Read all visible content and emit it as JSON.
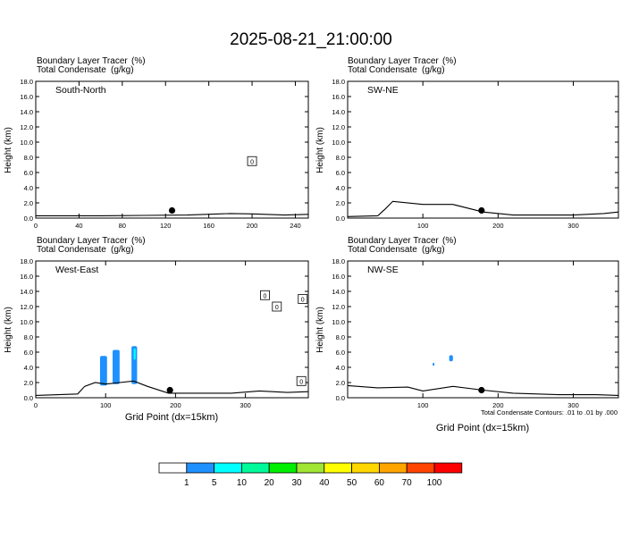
{
  "title": "2025-08-21_21:00:00",
  "panel_header": {
    "line1_label": "Boundary Layer Tracer",
    "line1_unit": "(%)",
    "line2_label": "Total Condensate",
    "line2_unit": "(g/kg)"
  },
  "xlabel": "Grid Point (dx=15km)",
  "ylabel": "Height (km)",
  "contour_note": "Total Condensate Contours: .01 to .01 by .000",
  "colorbar": {
    "labels": [
      "1",
      "5",
      "10",
      "20",
      "30",
      "40",
      "50",
      "60",
      "70",
      "100"
    ],
    "colors": [
      "#ffffff",
      "#1e90ff",
      "#00ffff",
      "#00fa9a",
      "#00ee00",
      "#a0e632",
      "#ffff00",
      "#ffd700",
      "#ffa500",
      "#ff4500",
      "#ff0000"
    ]
  },
  "chart_data": [
    {
      "type": "heatmap",
      "panel_label": "South-North",
      "ylim": [
        0,
        18
      ],
      "yticks": [
        "0.0",
        "2.0",
        "4.0",
        "6.0",
        "8.0",
        "10.0",
        "12.0",
        "14.0",
        "16.0",
        "18.0"
      ],
      "xlim": [
        0,
        252
      ],
      "xticks": [
        "0",
        "40",
        "80",
        "120",
        "160",
        "200",
        "240"
      ],
      "marker": {
        "x": 126,
        "y": 1.0
      },
      "boundary_layer_top": [
        [
          0,
          0.3
        ],
        [
          60,
          0.3
        ],
        [
          100,
          0.35
        ],
        [
          140,
          0.4
        ],
        [
          170,
          0.55
        ],
        [
          180,
          0.6
        ],
        [
          200,
          0.55
        ],
        [
          230,
          0.4
        ],
        [
          252,
          0.5
        ]
      ],
      "contour_labels": [
        {
          "text": "0",
          "x": 200,
          "y": 7.5
        }
      ]
    },
    {
      "type": "heatmap",
      "panel_label": "SW-NE",
      "ylim": [
        0,
        18
      ],
      "yticks": [
        "0.0",
        "2.0",
        "4.0",
        "6.0",
        "8.0",
        "10.0",
        "12.0",
        "14.0",
        "16.0",
        "18.0"
      ],
      "xlim": [
        0,
        360
      ],
      "xticks": [
        "100",
        "200",
        "300"
      ],
      "marker": {
        "x": 178,
        "y": 1.0
      },
      "boundary_layer_top": [
        [
          0,
          0.2
        ],
        [
          40,
          0.3
        ],
        [
          50,
          1.2
        ],
        [
          60,
          2.2
        ],
        [
          100,
          1.8
        ],
        [
          140,
          1.8
        ],
        [
          180,
          0.8
        ],
        [
          220,
          0.4
        ],
        [
          300,
          0.4
        ],
        [
          340,
          0.6
        ],
        [
          360,
          0.8
        ]
      ],
      "contour_labels": []
    },
    {
      "type": "heatmap",
      "panel_label": "West-East",
      "ylim": [
        0,
        18
      ],
      "yticks": [
        "0.0",
        "2.0",
        "4.0",
        "6.0",
        "8.0",
        "10.0",
        "12.0",
        "14.0",
        "16.0",
        "18.0"
      ],
      "xlim": [
        0,
        390
      ],
      "xticks": [
        "0",
        "100",
        "200",
        "300"
      ],
      "marker": {
        "x": 192,
        "y": 1.0
      },
      "boundary_layer_top": [
        [
          0,
          0.3
        ],
        [
          60,
          0.5
        ],
        [
          70,
          1.5
        ],
        [
          85,
          2.0
        ],
        [
          100,
          1.8
        ],
        [
          140,
          2.2
        ],
        [
          160,
          1.5
        ],
        [
          190,
          0.6
        ],
        [
          280,
          0.6
        ],
        [
          320,
          0.9
        ],
        [
          360,
          0.7
        ],
        [
          390,
          0.8
        ]
      ],
      "shaded_regions": [
        {
          "value_class": "1-5",
          "x": [
            92,
            102
          ],
          "y": [
            1.6,
            5.5
          ]
        },
        {
          "value_class": "1-5",
          "x": [
            110,
            120
          ],
          "y": [
            1.8,
            6.3
          ]
        },
        {
          "value_class": "1-5",
          "x": [
            137,
            145
          ],
          "y": [
            1.8,
            6.8
          ]
        },
        {
          "value_class": "5-10",
          "x": [
            140,
            143
          ],
          "y": [
            5.0,
            6.5
          ]
        }
      ],
      "contour_labels": [
        {
          "text": "0",
          "x": 328,
          "y": 13.5
        },
        {
          "text": "0",
          "x": 345,
          "y": 12.0
        },
        {
          "text": "0",
          "x": 382,
          "y": 13.0
        },
        {
          "text": "0",
          "x": 380,
          "y": 2.2
        }
      ]
    },
    {
      "type": "heatmap",
      "panel_label": "NW-SE",
      "ylim": [
        0,
        18
      ],
      "yticks": [
        "0.0",
        "2.0",
        "4.0",
        "6.0",
        "8.0",
        "10.0",
        "12.0",
        "14.0",
        "16.0",
        "18.0"
      ],
      "xlim": [
        0,
        360
      ],
      "xticks": [
        "100",
        "200",
        "300"
      ],
      "marker": {
        "x": 178,
        "y": 1.0
      },
      "boundary_layer_top": [
        [
          0,
          1.6
        ],
        [
          40,
          1.3
        ],
        [
          80,
          1.4
        ],
        [
          100,
          0.9
        ],
        [
          140,
          1.5
        ],
        [
          180,
          1.0
        ],
        [
          220,
          0.6
        ],
        [
          280,
          0.4
        ],
        [
          330,
          0.4
        ],
        [
          360,
          0.3
        ]
      ],
      "shaded_regions": [
        {
          "value_class": "1-5",
          "x": [
            135,
            140
          ],
          "y": [
            4.8,
            5.6
          ]
        },
        {
          "value_class": "1-5",
          "x": [
            113,
            115
          ],
          "y": [
            4.2,
            4.6
          ]
        }
      ],
      "contour_labels": []
    }
  ]
}
